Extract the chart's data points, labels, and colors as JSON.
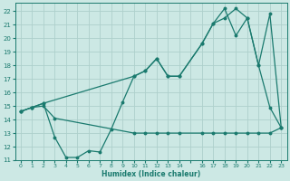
{
  "xlabel": "Humidex (Indice chaleur)",
  "background_color": "#cce8e4",
  "grid_color": "#aed0cb",
  "line_color": "#1a7a6e",
  "ylim": [
    11,
    22.6
  ],
  "yticks": [
    11,
    12,
    13,
    14,
    15,
    16,
    17,
    18,
    19,
    20,
    21,
    22
  ],
  "xtick_labels": [
    "0",
    "1",
    "2",
    "3",
    "4",
    "5",
    "6",
    "7",
    "8",
    "9",
    "10",
    "11",
    "12",
    "13",
    "14",
    "",
    "16",
    "17",
    "18",
    "19",
    "20",
    "21",
    "22",
    "23"
  ],
  "n_xticks": 24,
  "line1_x": [
    0,
    1,
    2,
    3,
    10,
    11,
    12,
    13,
    14,
    16,
    17,
    18,
    19,
    20,
    21,
    22,
    23
  ],
  "line1_y": [
    14.6,
    14.9,
    15.0,
    14.1,
    13.0,
    13.0,
    13.0,
    13.0,
    13.0,
    13.0,
    13.0,
    13.0,
    13.0,
    13.0,
    13.0,
    13.0,
    13.4
  ],
  "line2_x": [
    0,
    1,
    2,
    3,
    4,
    5,
    6,
    7,
    8,
    9,
    10,
    11,
    12,
    13,
    14,
    16,
    17,
    18,
    19,
    20,
    21,
    22,
    23
  ],
  "line2_y": [
    14.6,
    14.9,
    15.2,
    12.7,
    11.2,
    11.2,
    11.7,
    11.6,
    13.3,
    15.3,
    17.2,
    17.6,
    18.5,
    17.2,
    17.2,
    19.6,
    21.1,
    21.5,
    22.2,
    21.5,
    18.0,
    14.9,
    13.4
  ],
  "line3_x": [
    0,
    1,
    2,
    10,
    11,
    12,
    13,
    14,
    16,
    17,
    18,
    19,
    20,
    21,
    22,
    23
  ],
  "line3_y": [
    14.6,
    14.9,
    15.2,
    17.2,
    17.6,
    18.5,
    17.2,
    17.2,
    19.6,
    21.1,
    22.2,
    20.2,
    21.5,
    18.0,
    21.8,
    13.4
  ]
}
